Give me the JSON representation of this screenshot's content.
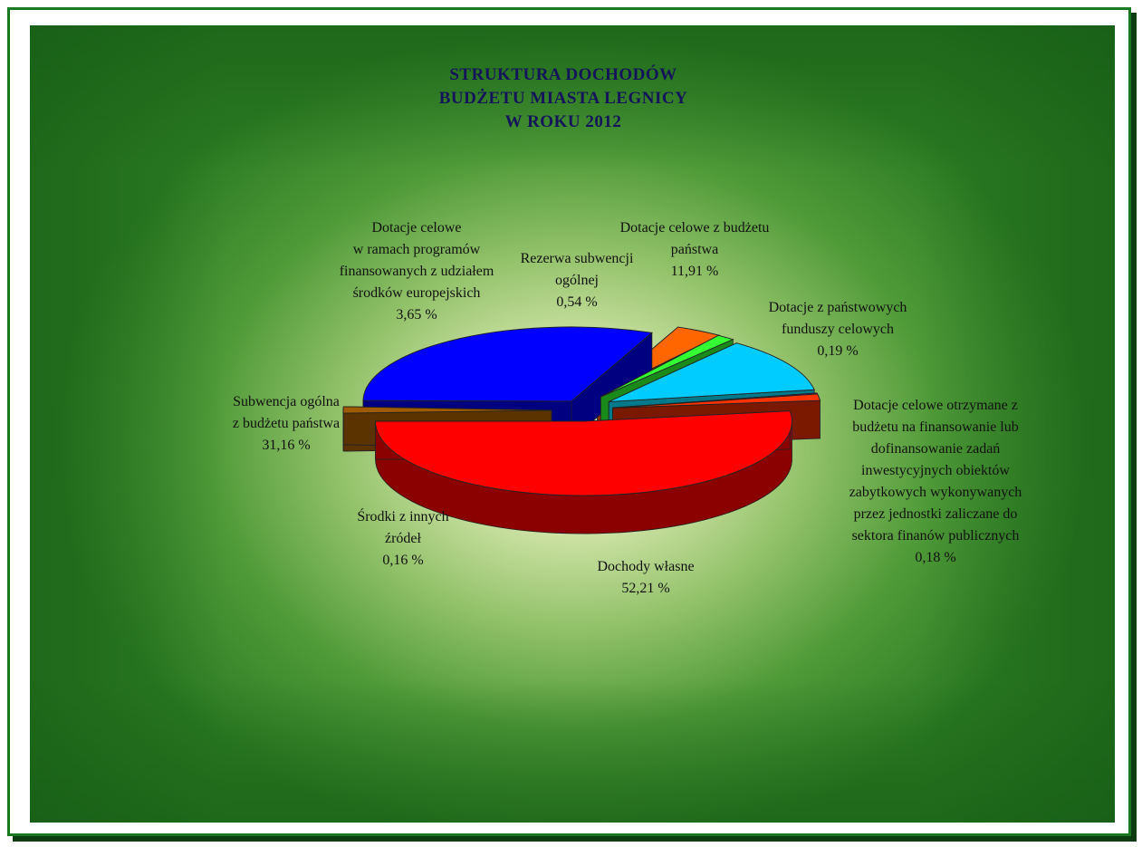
{
  "chart_data": {
    "type": "pie",
    "title": [
      "STRUKTURA  DOCHODÓW",
      "BUDŻETU MIASTA LEGNICY",
      "W  ROKU 2012"
    ],
    "slices": [
      {
        "lines": [
          "Dochody własne"
        ],
        "value_label": "52,21 %",
        "value": 52.21,
        "color": "#ff0000",
        "side": "#8b0000"
      },
      {
        "lines": [
          "Dotacje celowe otrzymane z",
          "budżetu na finansowanie lub",
          "dofinansowanie zadań",
          "inwestycyjnych obiektów",
          "zabytkowych wykonywanych",
          "przez jednostki zaliczane do",
          "sektora finanów publicznych"
        ],
        "value_label": "0,18 %",
        "value": 0.18,
        "color": "#ff3300",
        "side": "#7a1800"
      },
      {
        "lines": [
          "Dotacje z państwowych",
          "funduszy celowych"
        ],
        "value_label": "0,19 %",
        "value": 0.19,
        "color": "#990099",
        "side": "#550055"
      },
      {
        "lines": [
          "Dotacje celowe z budżetu",
          "państwa"
        ],
        "value_label": "11,91 %",
        "value": 11.91,
        "color": "#00ccff",
        "side": "#007a8a"
      },
      {
        "lines": [
          "Rezerwa subwencji",
          "ogólnej"
        ],
        "value_label": "0,54 %",
        "value": 0.54,
        "color": "#33ff33",
        "side": "#1a8a1a"
      },
      {
        "lines": [
          "Dotacje celowe",
          "w  ramach programów",
          "finansowanych z udziałem",
          "środków europejskich"
        ],
        "value_label": "3,65 %",
        "value": 3.65,
        "color": "#ff6600",
        "side": "#8a3300"
      },
      {
        "lines": [
          "Subwencja ogólna",
          "z budżetu państwa"
        ],
        "value_label": "31,16 %",
        "value": 31.16,
        "color": "#0000ff",
        "side": "#000080"
      },
      {
        "lines": [
          "Środki z innych",
          "źródeł"
        ],
        "value_label": "0,16 %",
        "value": 0.16,
        "color": "#a05a00",
        "side": "#5a3300"
      }
    ]
  }
}
